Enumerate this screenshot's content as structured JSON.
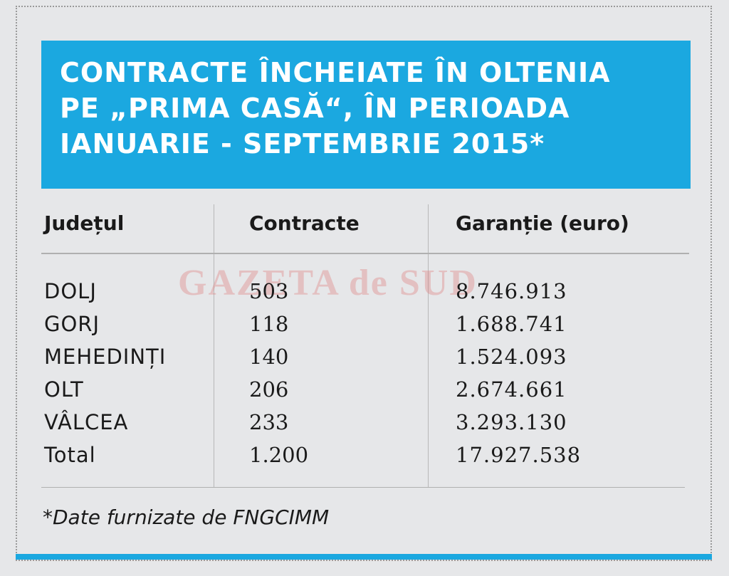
{
  "title_lines": [
    "CONTRACTE ÎNCHEIATE ÎN OLTENIA",
    "PE „PRIMA CASĂ“, ÎN PERIOADA",
    "IANUARIE - SEPTEMBRIE 2015*"
  ],
  "headers": [
    "Județul",
    "Contracte",
    "Garanție (euro)"
  ],
  "rows": [
    [
      "DOLJ",
      "503",
      "8.746.913"
    ],
    [
      "GORJ",
      "118",
      "1.688.741"
    ],
    [
      "MEHEDINȚI",
      "140",
      "1.524.093"
    ],
    [
      "OLT",
      "206",
      "2.674.661"
    ],
    [
      "VÂLCEA",
      "233",
      "3.293.130"
    ],
    [
      "Total",
      "1.200",
      "17.927.538"
    ]
  ],
  "watermark": "GAZETA de SUD",
  "footnote": "*Date furnizate de FNGCIMM",
  "colors": {
    "accent": "#1ba8e0",
    "background": "#e6e7e9"
  }
}
